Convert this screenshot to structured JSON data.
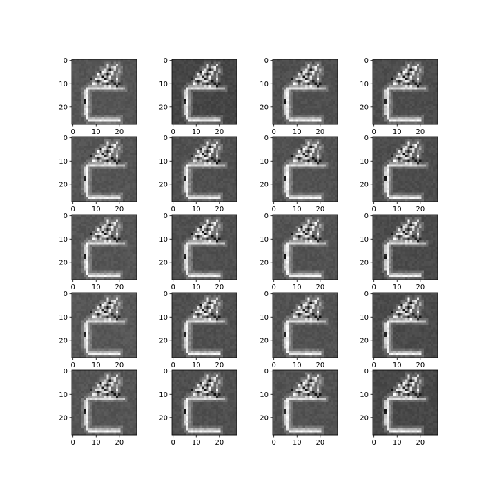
{
  "chart_data": {
    "type": "heatmap",
    "layout": {
      "rows": 5,
      "cols": 4
    },
    "panel_count": 20,
    "image_size": [
      28,
      28
    ],
    "colormap": "gray",
    "xlim": [
      -0.5,
      27.5
    ],
    "ylim": [
      27.5,
      -0.5
    ],
    "xticks": [
      0,
      10,
      20
    ],
    "yticks": [
      0,
      10,
      20
    ],
    "title": "",
    "xlabel": "",
    "ylabel": "",
    "background_gray": [
      0.33,
      0.27,
      0.31,
      0.3,
      0.33,
      0.31,
      0.32,
      0.3,
      0.33,
      0.31,
      0.32,
      0.29,
      0.34,
      0.31,
      0.32,
      0.29,
      0.33,
      0.31,
      0.32,
      0.28
    ],
    "shape_segments": [
      {
        "from": [
          7,
          26
        ],
        "to": [
          20,
          26
        ],
        "value": 1.0
      },
      {
        "from": [
          7,
          25
        ],
        "to": [
          20,
          25
        ],
        "value": 0.75
      },
      {
        "from": [
          6,
          12
        ],
        "to": [
          6,
          25
        ],
        "value": 1.0
      },
      {
        "from": [
          5,
          13
        ],
        "to": [
          5,
          23
        ],
        "value": 0.85
      },
      {
        "from": [
          7,
          11
        ],
        "to": [
          7,
          24
        ],
        "value": 0.6
      },
      {
        "from": [
          6,
          12
        ],
        "to": [
          18,
          12
        ],
        "value": 0.92
      },
      {
        "from": [
          7,
          11
        ],
        "to": [
          17,
          11
        ],
        "value": 0.7
      },
      {
        "from": [
          18,
          12
        ],
        "to": [
          22,
          12
        ],
        "value": 0.8
      },
      {
        "from": [
          10,
          10
        ],
        "to": [
          15,
          3
        ],
        "value": 0.88
      },
      {
        "from": [
          12,
          10
        ],
        "to": [
          17,
          3
        ],
        "value": 0.82
      },
      {
        "from": [
          14,
          11
        ],
        "to": [
          19,
          2
        ],
        "value": 0.9
      },
      {
        "from": [
          9,
          9
        ],
        "to": [
          13,
          4
        ],
        "value": 0.65
      },
      {
        "from": [
          18,
          11
        ],
        "to": [
          20,
          4
        ],
        "value": 0.7
      }
    ],
    "dark_pixels": [
      [
        5,
        17
      ],
      [
        5,
        18
      ],
      [
        8,
        8
      ],
      [
        11,
        9
      ],
      [
        13,
        7
      ],
      [
        15,
        6
      ],
      [
        15,
        10
      ],
      [
        17,
        9
      ],
      [
        18,
        10
      ],
      [
        19,
        11
      ],
      [
        14,
        8
      ],
      [
        12,
        5
      ],
      [
        16,
        4
      ],
      [
        20,
        10
      ]
    ],
    "bright_pixels": [
      [
        10,
        8
      ],
      [
        12,
        8
      ],
      [
        14,
        9
      ],
      [
        16,
        7
      ],
      [
        11,
        6
      ],
      [
        13,
        5
      ],
      [
        17,
        5
      ],
      [
        15,
        2
      ],
      [
        18,
        3
      ],
      [
        9,
        10
      ],
      [
        16,
        11
      ],
      [
        19,
        8
      ]
    ]
  }
}
